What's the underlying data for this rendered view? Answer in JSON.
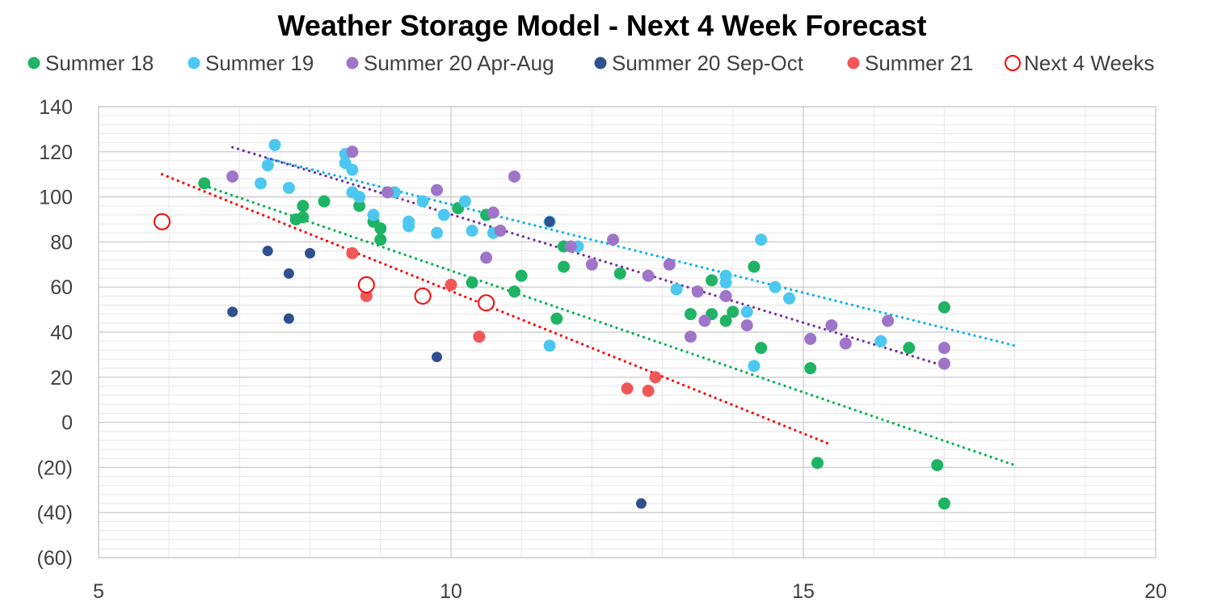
{
  "chart_data": {
    "type": "scatter",
    "title": "Weather Storage Model - Next 4 Week Forecast",
    "xlim": [
      5,
      20
    ],
    "ylim": [
      -60,
      140
    ],
    "x_ticks": [
      5,
      10,
      15,
      20
    ],
    "x_tick_labels": [
      "5",
      "10",
      "15",
      "20"
    ],
    "y_ticks": [
      -60,
      -40,
      -20,
      0,
      20,
      40,
      60,
      80,
      100,
      120,
      140
    ],
    "y_tick_labels": [
      "(60)",
      "(40)",
      "(20)",
      "0",
      "20",
      "40",
      "60",
      "80",
      "100",
      "120",
      "140"
    ],
    "negative_label_color": "#e00000",
    "grid": "on",
    "legend_position": "top",
    "series": [
      {
        "name": "Summer 18",
        "color": "#1eb464",
        "marker": "filled-circle",
        "points": [
          [
            6.5,
            106
          ],
          [
            7.8,
            90
          ],
          [
            7.9,
            96
          ],
          [
            7.9,
            91
          ],
          [
            8.2,
            98
          ],
          [
            8.7,
            96
          ],
          [
            8.9,
            89
          ],
          [
            9.0,
            86
          ],
          [
            9.0,
            81
          ],
          [
            10.1,
            95
          ],
          [
            10.3,
            62
          ],
          [
            10.5,
            92
          ],
          [
            10.9,
            58
          ],
          [
            11.0,
            65
          ],
          [
            11.5,
            46
          ],
          [
            11.6,
            69
          ],
          [
            11.6,
            78
          ],
          [
            12.4,
            66
          ],
          [
            13.4,
            48
          ],
          [
            13.7,
            63
          ],
          [
            13.7,
            48
          ],
          [
            13.9,
            45
          ],
          [
            14.0,
            49
          ],
          [
            14.3,
            69
          ],
          [
            14.4,
            33
          ],
          [
            15.1,
            24
          ],
          [
            15.2,
            -18
          ],
          [
            16.5,
            33
          ],
          [
            16.9,
            -19
          ],
          [
            17.0,
            51
          ],
          [
            17.0,
            -36
          ]
        ],
        "trendline": {
          "from": [
            6.5,
            105
          ],
          "to": [
            18.0,
            -19
          ],
          "color": "#00b050"
        }
      },
      {
        "name": "Summer 19",
        "color": "#4cc8f0",
        "marker": "filled-circle",
        "points": [
          [
            7.4,
            114
          ],
          [
            7.5,
            123
          ],
          [
            7.3,
            106
          ],
          [
            7.7,
            104
          ],
          [
            8.5,
            115
          ],
          [
            8.5,
            119
          ],
          [
            8.6,
            112
          ],
          [
            8.6,
            102
          ],
          [
            8.7,
            100
          ],
          [
            8.9,
            92
          ],
          [
            9.2,
            102
          ],
          [
            9.4,
            89
          ],
          [
            9.4,
            87
          ],
          [
            9.6,
            98
          ],
          [
            9.8,
            84
          ],
          [
            9.9,
            92
          ],
          [
            10.2,
            98
          ],
          [
            10.3,
            85
          ],
          [
            10.6,
            84
          ],
          [
            11.4,
            89
          ],
          [
            11.4,
            34
          ],
          [
            11.8,
            78
          ],
          [
            13.2,
            59
          ],
          [
            13.9,
            65
          ],
          [
            13.9,
            62
          ],
          [
            14.2,
            49
          ],
          [
            14.3,
            25
          ],
          [
            14.4,
            81
          ],
          [
            14.6,
            60
          ],
          [
            14.8,
            55
          ],
          [
            16.1,
            36
          ]
        ],
        "trendline": {
          "from": [
            7.4,
            117
          ],
          "to": [
            18.0,
            34
          ],
          "color": "#00b0f0"
        }
      },
      {
        "name": "Summer 20 Apr-Aug",
        "color": "#9f75c9",
        "marker": "filled-circle",
        "points": [
          [
            6.9,
            109
          ],
          [
            8.6,
            120
          ],
          [
            9.1,
            102
          ],
          [
            9.8,
            103
          ],
          [
            10.5,
            73
          ],
          [
            10.6,
            93
          ],
          [
            10.7,
            85
          ],
          [
            10.9,
            109
          ],
          [
            11.7,
            78
          ],
          [
            12.0,
            70
          ],
          [
            12.3,
            81
          ],
          [
            12.8,
            65
          ],
          [
            13.1,
            70
          ],
          [
            13.4,
            38
          ],
          [
            13.5,
            58
          ],
          [
            13.6,
            45
          ],
          [
            13.9,
            56
          ],
          [
            14.2,
            43
          ],
          [
            15.1,
            37
          ],
          [
            15.4,
            43
          ],
          [
            15.6,
            35
          ],
          [
            16.2,
            45
          ],
          [
            17.0,
            33
          ],
          [
            17.0,
            26
          ]
        ],
        "trendline": {
          "from": [
            6.9,
            122
          ],
          "to": [
            17.0,
            25
          ],
          "color": "#7030a0"
        }
      },
      {
        "name": "Summer 20 Sep-Oct",
        "color": "#2f4f8f",
        "marker": "filled-circle",
        "points": [
          [
            6.9,
            49
          ],
          [
            7.4,
            76
          ],
          [
            7.7,
            66
          ],
          [
            7.7,
            46
          ],
          [
            8.0,
            75
          ],
          [
            9.8,
            29
          ],
          [
            11.4,
            89
          ],
          [
            12.7,
            -36
          ]
        ],
        "trendline": null
      },
      {
        "name": "Summer 21",
        "color": "#f25757",
        "marker": "filled-circle",
        "points": [
          [
            8.6,
            75
          ],
          [
            8.8,
            56
          ],
          [
            10.0,
            61
          ],
          [
            10.4,
            38
          ],
          [
            12.5,
            15
          ],
          [
            12.8,
            14
          ],
          [
            12.9,
            20
          ]
        ],
        "trendline": {
          "from": [
            5.9,
            110
          ],
          "to": [
            15.4,
            -10
          ],
          "color": "#ff0000"
        }
      },
      {
        "name": "Next 4 Weeks",
        "color": "#ff0000",
        "marker": "open-circle",
        "points": [
          [
            5.9,
            89
          ],
          [
            8.8,
            61
          ],
          [
            9.6,
            56
          ],
          [
            10.5,
            53
          ]
        ],
        "trendline": null
      }
    ]
  }
}
